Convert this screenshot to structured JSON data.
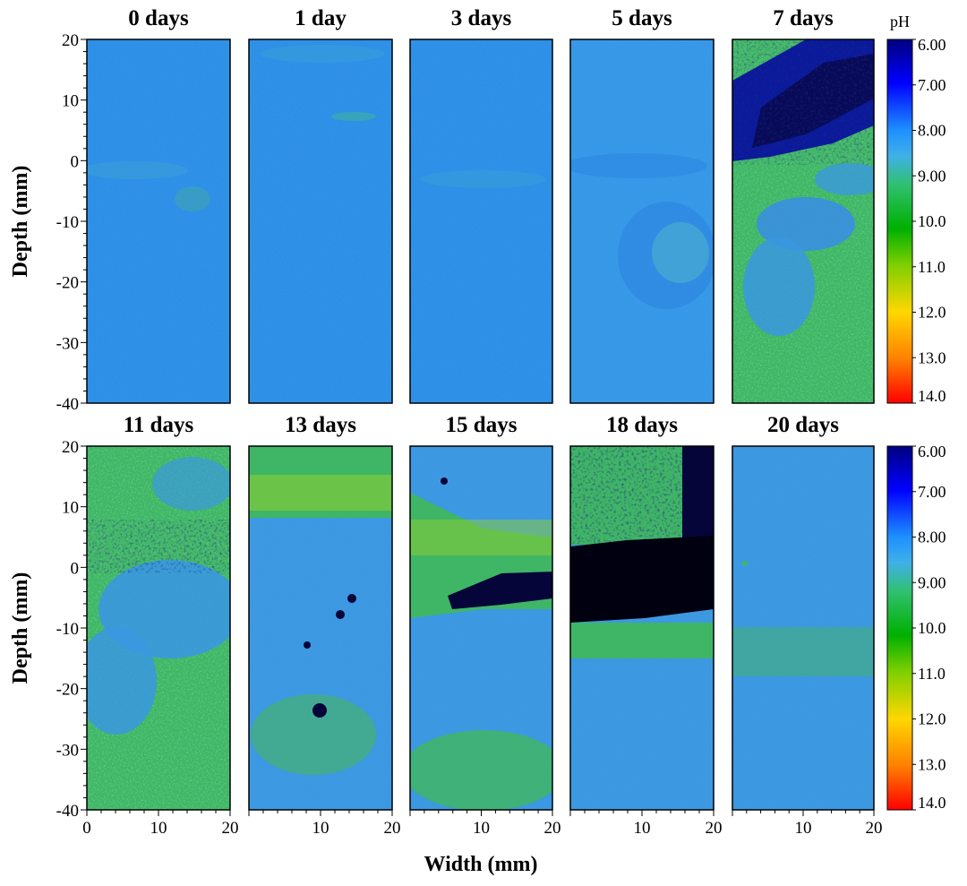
{
  "chart_data": {
    "type": "heatmap",
    "xlabel": "Width (mm)",
    "ylabel": "Depth (mm)",
    "xlim": [
      0,
      20
    ],
    "ylim": [
      -40,
      20
    ],
    "y_ticks": [
      "20",
      "10",
      "0",
      "-10",
      "-20",
      "-30",
      "-40"
    ],
    "x_ticks": [
      "0",
      "10",
      "20"
    ],
    "colorbar": {
      "label": "pH",
      "ticks": [
        "6.00",
        "7.00",
        "8.00",
        "9.00",
        "10.0",
        "11.0",
        "12.0",
        "13.0",
        "14.0"
      ],
      "colors": [
        "#00008b",
        "#0000cd",
        "#1e90ff",
        "#2fb4f0",
        "#40c78a",
        "#1cbf1a",
        "#8cd000",
        "#ffcc00",
        "#ff7000",
        "#ff0000"
      ]
    },
    "panels": [
      {
        "title": "0 days"
      },
      {
        "title": "1 day"
      },
      {
        "title": "3 days"
      },
      {
        "title": "5 days"
      },
      {
        "title": "7 days"
      },
      {
        "title": "11 days"
      },
      {
        "title": "13 days"
      },
      {
        "title": "15 days"
      },
      {
        "title": "18 days"
      },
      {
        "title": "20 days"
      }
    ]
  }
}
